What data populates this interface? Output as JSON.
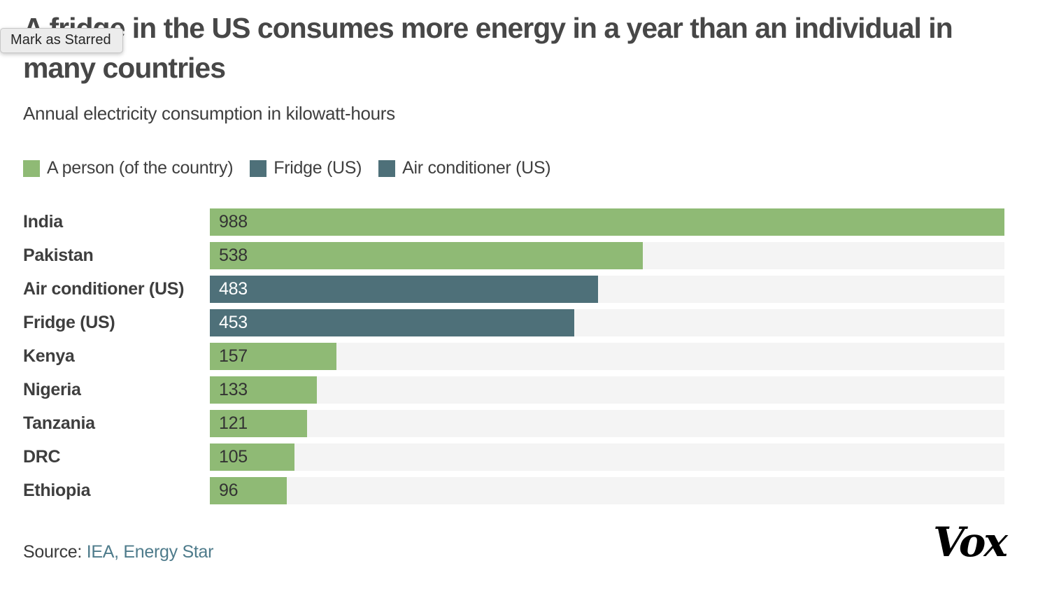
{
  "tooltip": {
    "text": "Mark as Starred"
  },
  "header": {
    "title": "A fridge in the US consumes more energy in a year than an individual in many countries",
    "subtitle": "Annual electricity consumption in kilowatt-hours"
  },
  "legend": [
    {
      "label": "A person (of the country)",
      "color": "#8fba75"
    },
    {
      "label": "Fridge (US)",
      "color": "#4e7079"
    },
    {
      "label": "Air conditioner (US)",
      "color": "#4e7079"
    }
  ],
  "chart_data": {
    "type": "bar",
    "orientation": "horizontal",
    "title": "A fridge in the US consumes more energy in a year than an individual in many countries",
    "subtitle": "Annual electricity consumption in kilowatt-hours",
    "xlim": [
      0,
      988
    ],
    "grid": false,
    "legend_position": "top",
    "categories": [
      "India",
      "Pakistan",
      "Air conditioner (US)",
      "Fridge (US)",
      "Kenya",
      "Nigeria",
      "Tanzania",
      "DRC",
      "Ethiopia"
    ],
    "values": [
      988,
      538,
      483,
      453,
      157,
      133,
      121,
      105,
      96
    ],
    "rows": [
      {
        "label": "India",
        "value": 988,
        "kind": "person"
      },
      {
        "label": "Pakistan",
        "value": 538,
        "kind": "person"
      },
      {
        "label": "Air conditioner (US)",
        "value": 483,
        "kind": "appliance"
      },
      {
        "label": "Fridge (US)",
        "value": 453,
        "kind": "appliance"
      },
      {
        "label": "Kenya",
        "value": 157,
        "kind": "person"
      },
      {
        "label": "Nigeria",
        "value": 133,
        "kind": "person"
      },
      {
        "label": "Tanzania",
        "value": 121,
        "kind": "person"
      },
      {
        "label": "DRC",
        "value": 105,
        "kind": "person"
      },
      {
        "label": "Ethiopia",
        "value": 96,
        "kind": "person"
      }
    ]
  },
  "colors": {
    "person_bar": "#8fba75",
    "appliance_bar": "#4e7079",
    "track": "#f4f4f4",
    "value_on_person": "#333333",
    "value_on_appliance": "#ffffff",
    "link": "#4e7b8b"
  },
  "source": {
    "label": "Source:",
    "link_text": "IEA, Energy Star"
  },
  "branding": {
    "logo_text": "Vox"
  }
}
